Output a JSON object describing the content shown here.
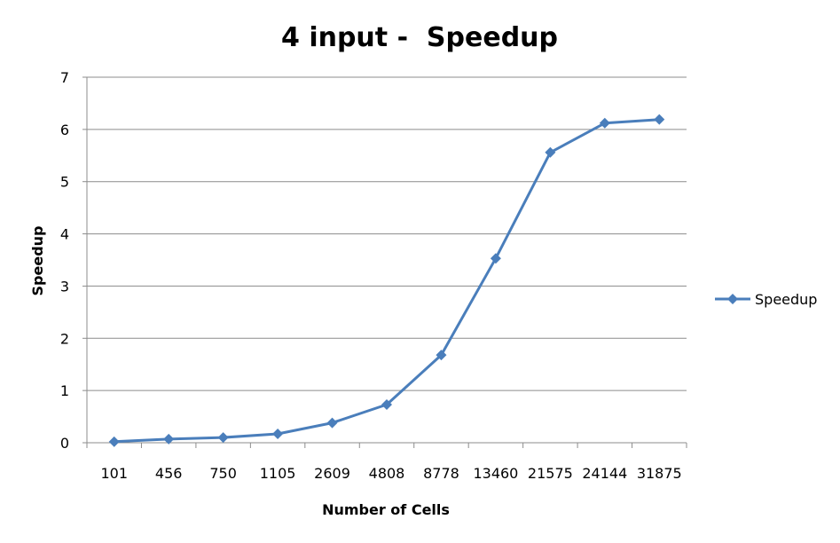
{
  "chart_data": {
    "type": "line",
    "title": "4 input -  Speedup",
    "xlabel": "Number of Cells",
    "ylabel": "Speedup",
    "categories": [
      "101",
      "456",
      "750",
      "1105",
      "2609",
      "4808",
      "8778",
      "13460",
      "21575",
      "24144",
      "31875"
    ],
    "series": [
      {
        "name": "Speedup",
        "values": [
          0.02,
          0.07,
          0.1,
          0.17,
          0.38,
          0.73,
          1.68,
          3.53,
          5.56,
          6.12,
          6.19
        ],
        "color": "#4a7ebb",
        "marker": "diamond"
      }
    ],
    "ylim": [
      0,
      7
    ],
    "yticks": [
      0,
      1,
      2,
      3,
      4,
      5,
      6,
      7
    ],
    "grid": "horizontal",
    "legend": "right"
  }
}
